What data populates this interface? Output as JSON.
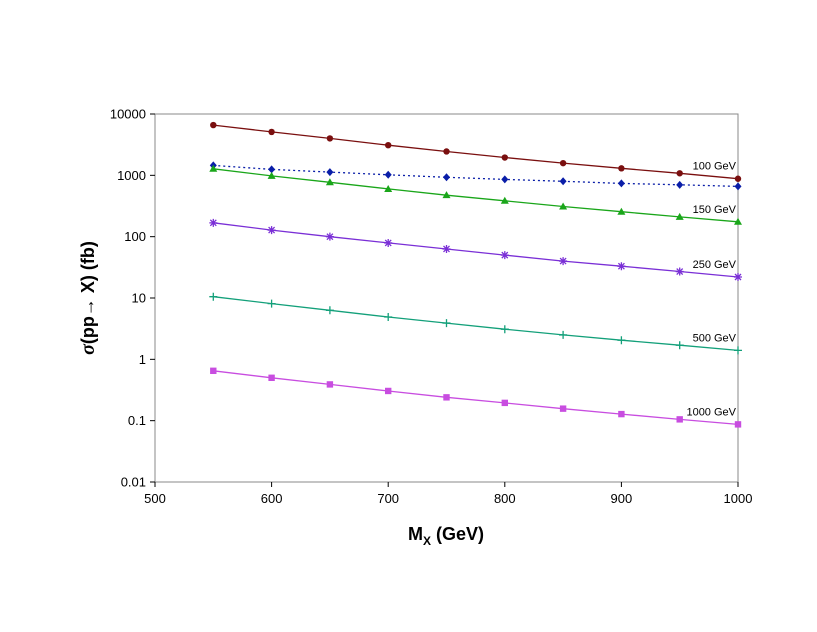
{
  "chart_data": {
    "type": "line",
    "title": "",
    "xlabel": {
      "main": "M",
      "sub": "X",
      "rest": " (GeV)"
    },
    "ylabel": {
      "sigma": "σ",
      "rest": "(pp→ X) (fb)"
    },
    "x_scale": "linear",
    "y_scale": "log",
    "xlim": [
      500,
      1000
    ],
    "ylim": [
      0.01,
      10000
    ],
    "x_ticks": [
      "500",
      "600",
      "700",
      "800",
      "900",
      "1000"
    ],
    "y_ticks": [
      "0.01",
      "0.1",
      "1",
      "10",
      "100",
      "1000",
      "10000"
    ],
    "x": [
      550,
      600,
      650,
      700,
      750,
      800,
      850,
      900,
      950,
      1000
    ],
    "series": [
      {
        "name": "100 GeV",
        "label": "100 GeV",
        "color": "#7a0f0f",
        "marker": "circle",
        "dashed": false,
        "values": [
          6600,
          5100,
          4000,
          3100,
          2450,
          1950,
          1580,
          1300,
          1080,
          880
        ]
      },
      {
        "name": "dotted",
        "label": "",
        "color": "#0a1ea8",
        "marker": "diamond",
        "dashed": true,
        "values": [
          1450,
          1250,
          1130,
          1020,
          930,
          860,
          800,
          740,
          700,
          660
        ]
      },
      {
        "name": "150 GeV",
        "label": "150 GeV",
        "color": "#1aa61a",
        "marker": "triangle",
        "dashed": false,
        "values": [
          1280,
          980,
          770,
          600,
          475,
          385,
          310,
          255,
          210,
          175
        ]
      },
      {
        "name": "250 GeV",
        "label": "250 GeV",
        "color": "#7a2fd6",
        "marker": "asterisk",
        "dashed": false,
        "values": [
          168,
          128,
          100,
          79,
          63,
          50,
          40,
          33,
          27,
          22
        ]
      },
      {
        "name": "500 GeV",
        "label": "500 GeV",
        "color": "#13a07a",
        "marker": "plus",
        "dashed": false,
        "values": [
          10.5,
          8.1,
          6.3,
          4.9,
          3.9,
          3.1,
          2.5,
          2.05,
          1.7,
          1.4
        ]
      },
      {
        "name": "1000 GeV",
        "label": "1000 GeV",
        "color": "#c84de0",
        "marker": "square",
        "dashed": false,
        "values": [
          0.65,
          0.5,
          0.39,
          0.305,
          0.24,
          0.195,
          0.157,
          0.128,
          0.105,
          0.087
        ]
      }
    ],
    "legend": "inline-right",
    "grid": false
  }
}
